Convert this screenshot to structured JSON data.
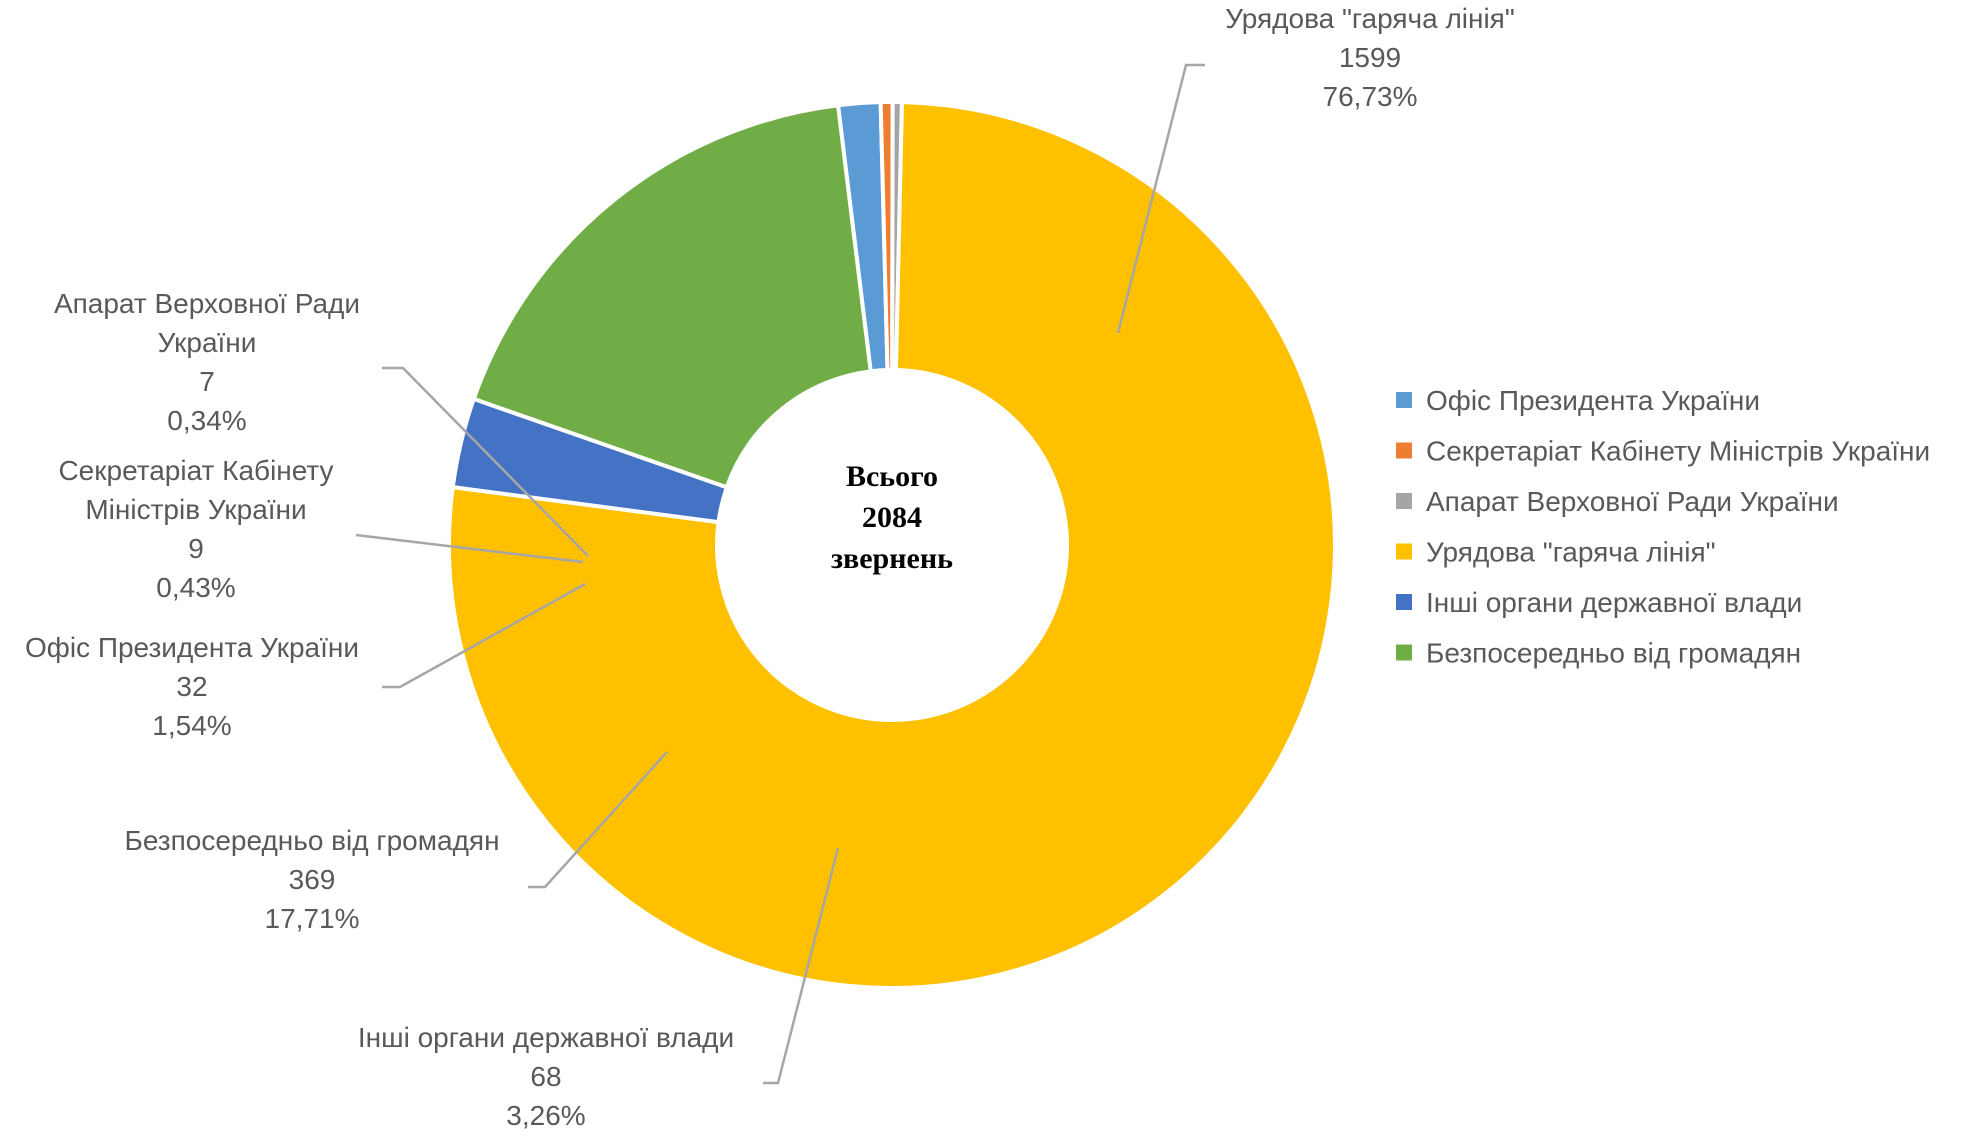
{
  "chart_data": {
    "type": "pie",
    "variant": "doughnut",
    "center_text": [
      "Всього",
      "2084",
      "звернень"
    ],
    "slices": [
      {
        "name": "Офіс Президента України",
        "value": 32,
        "percent": "1,54%",
        "color": "#5b9bd5",
        "label_lines": [
          "Офіс Президента України",
          "32",
          "1,54%"
        ]
      },
      {
        "name": "Секретаріат Кабінету Міністрів України",
        "value": 9,
        "percent": "0,43%",
        "color": "#ed7d31",
        "label_lines": [
          "Секретаріат Кабінету",
          "Міністрів України",
          "9",
          "0,43%"
        ]
      },
      {
        "name": "Апарат Верховної Ради України",
        "value": 7,
        "percent": "0,34%",
        "color": "#a5a5a5",
        "label_lines": [
          "Апарат Верховної Ради",
          "України",
          "7",
          "0,34%"
        ]
      },
      {
        "name": "Урядова \"гаряча лінія\"",
        "value": 1599,
        "percent": "76,73%",
        "color": "#ffc000",
        "label_lines": [
          "Урядова \"гаряча лінія\"",
          "1599",
          "76,73%"
        ]
      },
      {
        "name": "Інші органи державної влади",
        "value": 68,
        "percent": "3,26%",
        "color": "#4472c4",
        "label_lines": [
          "Інші органи державної влади",
          "68",
          "3,26%"
        ]
      },
      {
        "name": "Безпосередньо від громадян",
        "value": 369,
        "percent": "17,71%",
        "color": "#70ad47",
        "label_lines": [
          "Безпосередньо від громадян",
          "369",
          "17,71%"
        ]
      }
    ],
    "legend": {
      "position": "right",
      "entries": [
        "Офіс Президента України",
        "Секретаріат Кабінету Міністрів України",
        "Апарат Верховної Ради України",
        "Урядова \"гаряча лінія\"",
        "Інші органи державної влади",
        "Безпосередньо від громадян"
      ]
    }
  }
}
